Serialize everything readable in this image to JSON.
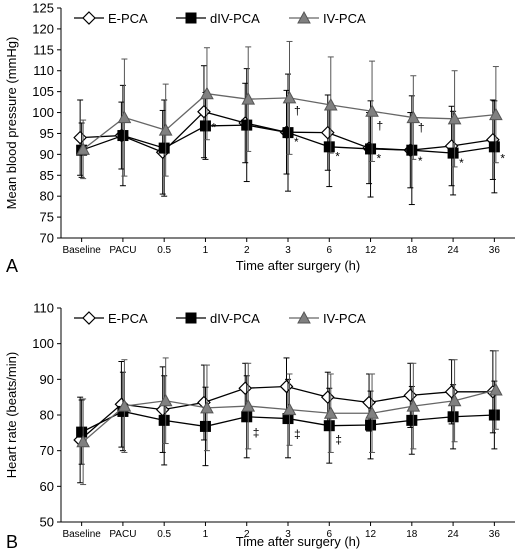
{
  "chart_data": [
    {
      "panel": "A",
      "type": "line",
      "xlabel": "Time after surgery (h)",
      "ylabel": "Mean blood pressure (mmHg)",
      "ylim": [
        70,
        125
      ],
      "yticks": [
        70,
        75,
        80,
        85,
        90,
        95,
        100,
        105,
        110,
        115,
        120,
        125
      ],
      "grid": false,
      "legend_position": "top-left",
      "categories": [
        "Baseline",
        "PACU",
        "0.5",
        "1",
        "2",
        "3",
        "6",
        "12",
        "18",
        "24",
        "36"
      ],
      "series": [
        {
          "name": "E-PCA",
          "marker": "diamond-open",
          "color": "#000000",
          "values": [
            94.0,
            94.5,
            90.5,
            100.2,
            97.5,
            95.3,
            95.2,
            91.5,
            91.0,
            92.0,
            93.5
          ],
          "error": [
            9.0,
            8.0,
            10.0,
            11.0,
            9.5,
            10.0,
            9.0,
            8.5,
            9.0,
            9.5,
            9.5
          ]
        },
        {
          "name": "dIV-PCA",
          "marker": "square-filled",
          "color": "#000000",
          "values": [
            91.0,
            94.5,
            91.5,
            96.8,
            97.0,
            95.2,
            91.8,
            91.3,
            91.0,
            90.3,
            91.8
          ],
          "error": [
            6.5,
            12.0,
            11.5,
            8.0,
            13.5,
            14.0,
            9.5,
            11.5,
            13.0,
            10.0,
            11.0
          ]
        },
        {
          "name": "IV-PCA",
          "marker": "triangle-filled",
          "color": "#808080",
          "values": [
            91.2,
            98.8,
            95.8,
            104.5,
            103.2,
            103.5,
            101.8,
            100.3,
            98.8,
            98.5,
            99.5
          ],
          "error": [
            7.0,
            14.0,
            11.0,
            11.0,
            12.5,
            13.5,
            11.5,
            12.0,
            10.0,
            11.5,
            11.5
          ]
        }
      ],
      "annotations": [
        {
          "category": "1",
          "symbol": "*",
          "y": 95.5
        },
        {
          "category": "3",
          "symbol": "†",
          "y": 99.5
        },
        {
          "category": "3",
          "symbol": "*",
          "y": 92.0
        },
        {
          "category": "6",
          "symbol": "*",
          "y": 88.5
        },
        {
          "category": "12",
          "symbol": "†",
          "y": 96.0
        },
        {
          "category": "12",
          "symbol": "*",
          "y": 88.0
        },
        {
          "category": "18",
          "symbol": "†",
          "y": 95.5
        },
        {
          "category": "18",
          "symbol": "*",
          "y": 87.5
        },
        {
          "category": "24",
          "symbol": "*",
          "y": 87.0
        },
        {
          "category": "36",
          "symbol": "*",
          "y": 88.0
        }
      ]
    },
    {
      "panel": "B",
      "type": "line",
      "xlabel": "Time after surgery (h)",
      "ylabel": "Heart rate (beats/min)",
      "ylim": [
        50,
        110
      ],
      "yticks": [
        50,
        60,
        70,
        80,
        90,
        100,
        110
      ],
      "grid": false,
      "legend_position": "top-left",
      "categories": [
        "Baseline",
        "PACU",
        "0.5",
        "1",
        "2",
        "3",
        "6",
        "12",
        "18",
        "24",
        "36"
      ],
      "series": [
        {
          "name": "E-PCA",
          "marker": "diamond-open",
          "color": "#000000",
          "values": [
            73.0,
            83.0,
            81.5,
            83.5,
            87.5,
            88.0,
            85.0,
            83.5,
            85.5,
            86.5,
            86.5
          ],
          "error": [
            12.0,
            12.0,
            12.0,
            10.5,
            7.0,
            8.0,
            7.0,
            8.0,
            9.0,
            9.0,
            11.5
          ]
        },
        {
          "name": "dIV-PCA",
          "marker": "square-filled",
          "color": "#000000",
          "values": [
            75.2,
            81.0,
            78.5,
            76.8,
            79.5,
            79.0,
            77.0,
            77.2,
            78.5,
            79.5,
            80.0
          ],
          "error": [
            9.0,
            11.0,
            12.5,
            11.0,
            11.5,
            11.0,
            10.5,
            9.5,
            9.5,
            9.0,
            9.5
          ]
        },
        {
          "name": "IV-PCA",
          "marker": "triangle-filled",
          "color": "#808080",
          "values": [
            72.5,
            82.5,
            84.0,
            82.0,
            82.5,
            81.5,
            80.5,
            80.5,
            82.5,
            84.0,
            87.0
          ],
          "error": [
            12.0,
            13.0,
            12.0,
            12.0,
            12.0,
            10.0,
            11.0,
            11.0,
            12.0,
            11.5,
            11.0
          ]
        }
      ],
      "annotations": [
        {
          "category": "2",
          "symbol": "‡",
          "y": 74.0
        },
        {
          "category": "3",
          "symbol": "‡",
          "y": 73.5
        },
        {
          "category": "6",
          "symbol": "‡",
          "y": 72.0
        }
      ]
    }
  ]
}
